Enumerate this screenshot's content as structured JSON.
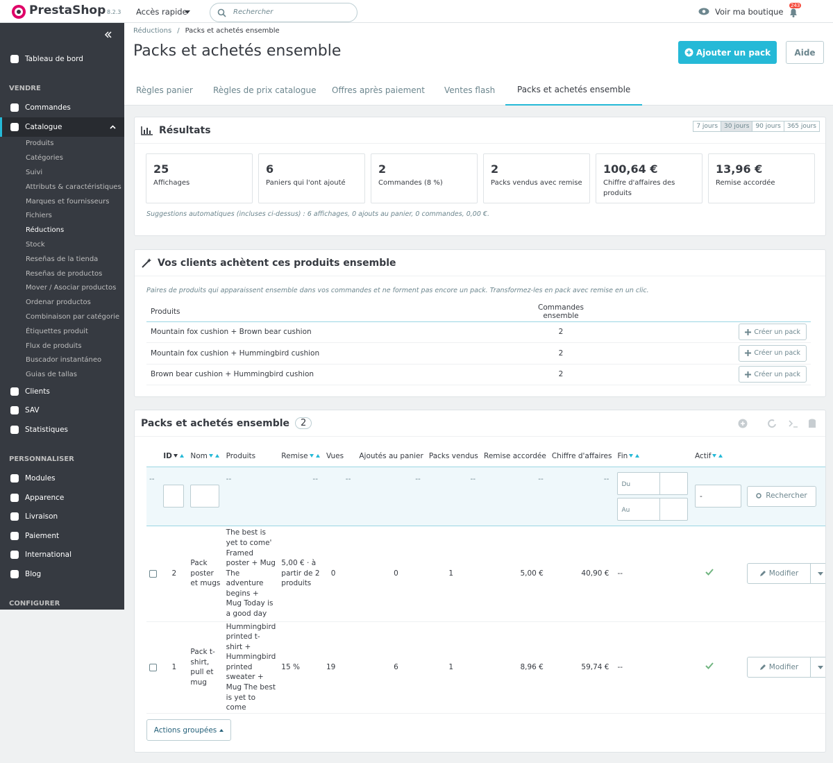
{
  "header": {
    "logo": "PrestaShop",
    "version": "8.2.3",
    "quick_access": "Accès rapide",
    "search_placeholder": "Rechercher",
    "view_shop": "Voir ma boutique",
    "notifications": "243"
  },
  "sidebar": {
    "dashboard": "Tableau de bord",
    "sections": [
      {
        "title": "VENDRE",
        "items": [
          {
            "label": "Commandes"
          },
          {
            "label": "Catalogue",
            "children": [
              "Produits",
              "Catégories",
              "Suivi",
              "Attributs & caractéristiques",
              "Marques et fournisseurs",
              "Fichiers",
              "Réductions",
              "Stock",
              "Reseñas de la tienda",
              "Reseñas de productos",
              "Mover / Asociar productos",
              "Ordenar productos",
              "Combinaison par catégorie",
              "Étiquettes produit",
              "Flux de produits",
              "Buscador instantáneo",
              "Guias de tallas"
            ]
          },
          {
            "label": "Clients"
          },
          {
            "label": "SAV"
          },
          {
            "label": "Statistiques"
          }
        ]
      },
      {
        "title": "PERSONNALISER",
        "items": [
          {
            "label": "Modules"
          },
          {
            "label": "Apparence"
          },
          {
            "label": "Livraison"
          },
          {
            "label": "Paiement"
          },
          {
            "label": "International"
          },
          {
            "label": "Blog"
          }
        ]
      },
      {
        "title": "CONFIGURER",
        "items": []
      }
    ]
  },
  "breadcrumb": [
    "Réductions",
    "Packs et achetés ensemble"
  ],
  "page_title": "Packs et achetés ensemble",
  "buttons": {
    "add_pack": "Ajouter un pack",
    "help": "Aide"
  },
  "tabs": [
    "Règles panier",
    "Règles de prix catalogue",
    "Offres après paiement",
    "Ventes flash",
    "Packs et achetés ensemble"
  ],
  "results": {
    "title": "Résultats",
    "periods": [
      "7 jours",
      "30 jours",
      "90 jours",
      "365 jours"
    ],
    "kpis": [
      {
        "value": "25",
        "label": "Affichages"
      },
      {
        "value": "6",
        "label": "Paniers qui l'ont ajouté"
      },
      {
        "value": "2",
        "label": "Commandes (8 %)"
      },
      {
        "value": "2",
        "label": "Packs vendus avec remise"
      },
      {
        "value": "100,64 €",
        "label": "Chiffre d'affaires des produits"
      },
      {
        "value": "13,96 €",
        "label": "Remise accordée"
      }
    ],
    "note": "Suggestions automatiques (incluses ci-dessus) : 6 affichages, 0 ajouts au panier, 0 commandes, 0,00 €."
  },
  "together": {
    "title": "Vos clients achètent ces produits ensemble",
    "description": "Paires de produits qui apparaissent ensemble dans vos commandes et ne forment pas encore un pack. Transformez-les en pack avec remise en un clic.",
    "columns": [
      "Produits",
      "Commandes ensemble"
    ],
    "action": "Créer un pack",
    "rows": [
      {
        "products": "Mountain fox cushion + Brown bear cushion",
        "orders": "2"
      },
      {
        "products": "Mountain fox cushion + Hummingbird cushion",
        "orders": "2"
      },
      {
        "products": "Brown bear cushion + Hummingbird cushion",
        "orders": "2"
      }
    ]
  },
  "packs": {
    "title": "Packs et achetés ensemble",
    "count": "2",
    "columns": [
      "ID",
      "Nom",
      "Produits",
      "Remise",
      "Vues",
      "Ajoutés au panier",
      "Packs vendus",
      "Remise accordée",
      "Chiffre d'affaires",
      "Fin",
      "Actif"
    ],
    "filter": {
      "empty": "--",
      "from": "Du",
      "to": "Au",
      "select": "-",
      "search": "Rechercher"
    },
    "edit": "Modifier",
    "rows": [
      {
        "id": "2",
        "name": "Pack poster et mugs",
        "products": "The best is yet to come' Framed poster + Mug The adventure begins + Mug Today is a good day",
        "discount": "5,00 € · à partir de 2 produits",
        "views": "0",
        "cart_adds": "0",
        "sold": "1",
        "discount_given": "5,00 €",
        "revenue": "40,90 €",
        "end": "--"
      },
      {
        "id": "1",
        "name": "Pack t-shirt, pull et mug",
        "products": "Hummingbird printed t-shirt + Hummingbird printed sweater + Mug The best is yet to come",
        "discount": "15 %",
        "views": "19",
        "cart_adds": "6",
        "sold": "1",
        "discount_given": "8,96 €",
        "revenue": "59,74 €",
        "end": "--"
      }
    ],
    "bulk": "Actions groupées"
  }
}
